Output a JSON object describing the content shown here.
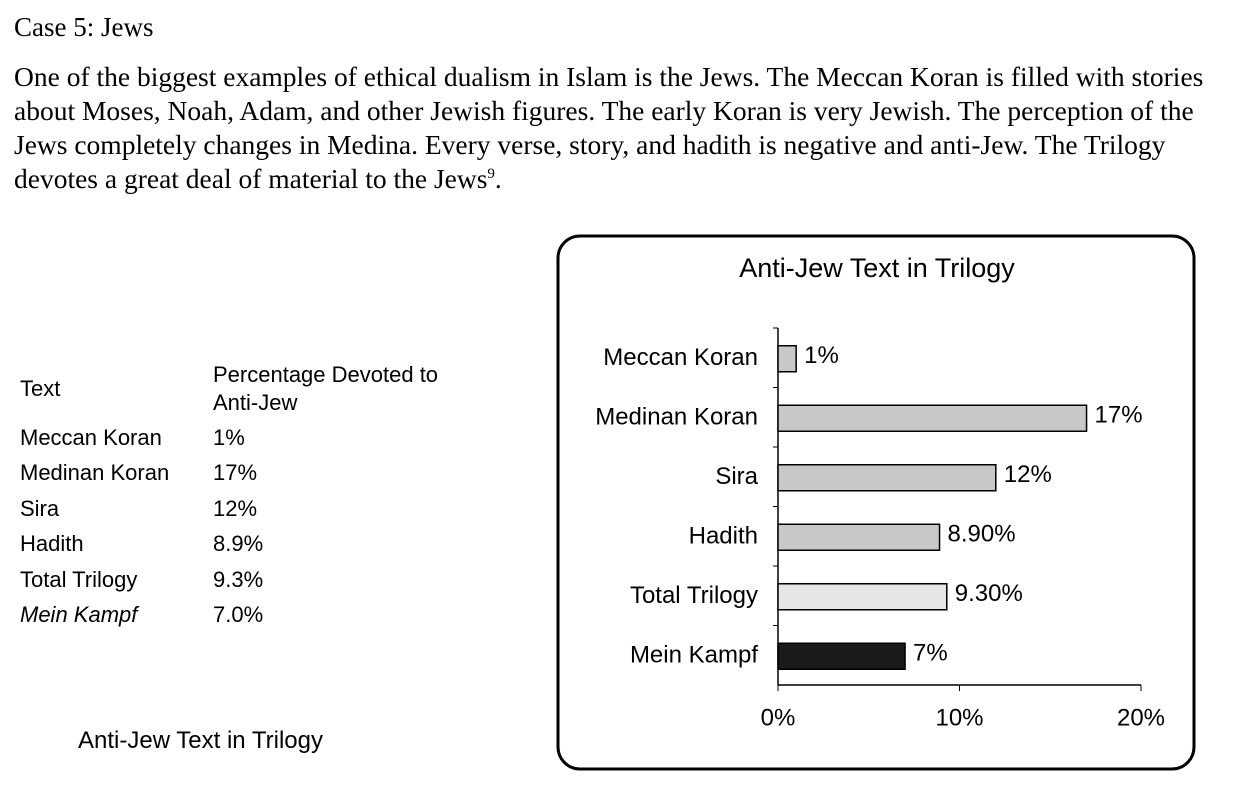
{
  "heading": "Case 5: Jews",
  "paragraph": {
    "text": "One of the biggest examples of ethical dualism in Islam is the Jews. The Meccan Koran is filled with stories about Moses, Noah, Adam, and other Jewish figures. The early Koran is very Jewish. The perception of the Jews completely changes in Medina. Every verse, story, and hadith is negative and anti-Jew. The Trilogy devotes a great deal of material to the Jews",
    "footnote": "9",
    "end": "."
  },
  "table": {
    "header": [
      "Text",
      "Percentage Devoted to Anti-Jew"
    ],
    "rows": [
      [
        "Meccan Koran",
        "1%"
      ],
      [
        "Medinan Koran",
        "17%"
      ],
      [
        "Sira",
        "12%"
      ],
      [
        "Hadith",
        "8.9%"
      ],
      [
        "Total Trilogy",
        "9.3%"
      ],
      [
        "Mein Kampf",
        "7.0%"
      ]
    ]
  },
  "caption": "Anti-Jew Text in Trilogy",
  "chart_data": {
    "type": "hbar",
    "title": "Anti-Jew Text in Trilogy",
    "categories": [
      "Meccan Koran",
      "Medinan Koran",
      "Sira",
      "Hadith",
      "Total Trilogy",
      "Mein Kampf"
    ],
    "values": [
      1,
      17,
      12,
      8.9,
      9.3,
      7
    ],
    "value_labels": [
      "1%",
      "17%",
      "12%",
      "8.90%",
      "9.30%",
      "7%"
    ],
    "colors": [
      "#c8c8c8",
      "#c8c8c8",
      "#c8c8c8",
      "#c8c8c8",
      "#e6e6e6",
      "#1a1a1a"
    ],
    "xlim": [
      0,
      20
    ],
    "xticks": [
      {
        "value": 0,
        "label": "0%"
      },
      {
        "value": 10,
        "label": "10%"
      },
      {
        "value": 20,
        "label": "20%"
      }
    ]
  }
}
